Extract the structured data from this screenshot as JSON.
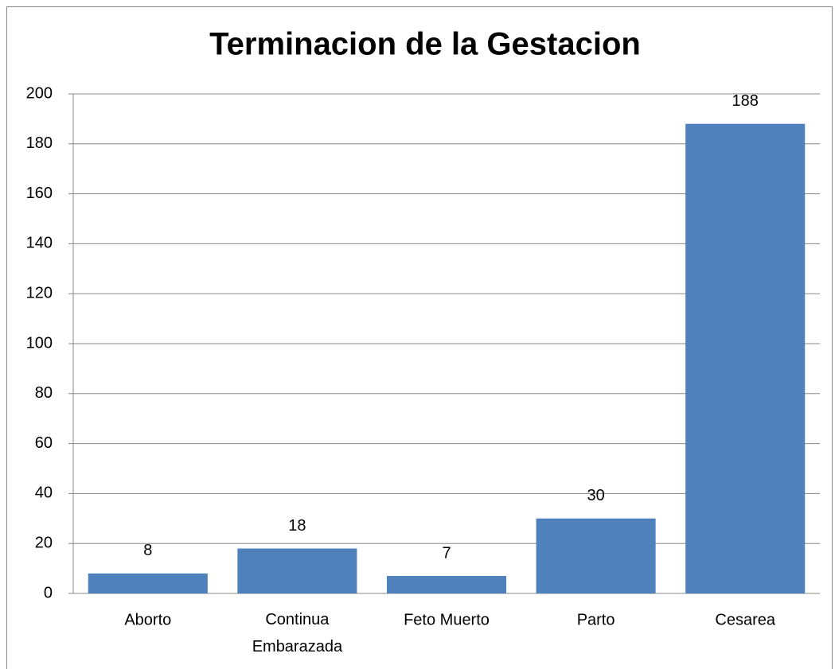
{
  "chart_data": {
    "type": "bar",
    "title": "Terminacion de la Gestacion",
    "categories": [
      "Aborto",
      "Continua Embarazada",
      "Feto Muerto",
      "Parto",
      "Cesarea"
    ],
    "values": [
      8,
      18,
      7,
      30,
      188
    ],
    "color": "#4f81bd",
    "ylim": [
      0,
      200
    ],
    "yticks": [
      0,
      20,
      40,
      60,
      80,
      100,
      120,
      140,
      160,
      180,
      200
    ],
    "grid": true
  }
}
